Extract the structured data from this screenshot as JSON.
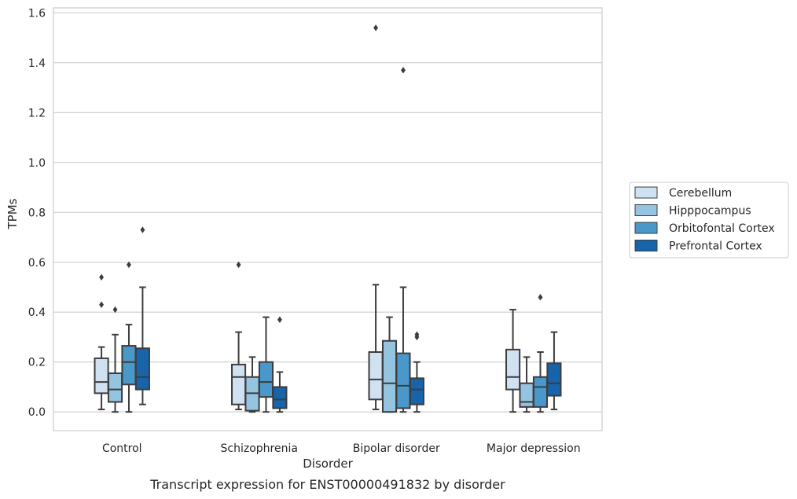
{
  "chart_data": {
    "type": "box",
    "title": "",
    "xlabel": "Disorder",
    "ylabel": "TPMs",
    "caption": "Transcript expression for ENST00000491832 by disorder",
    "ylim": [
      -0.075,
      1.62
    ],
    "yticks": [
      "0.0",
      "0.2",
      "0.4",
      "0.6",
      "0.8",
      "1.0",
      "1.2",
      "1.4",
      "1.6"
    ],
    "ytick_values": [
      0.0,
      0.2,
      0.4,
      0.6,
      0.8,
      1.0,
      1.2,
      1.4,
      1.6
    ],
    "categories": [
      "Control",
      "Schizophrenia",
      "Bipolar disorder",
      "Major depression"
    ],
    "grid": "horizontal",
    "legend_position": "right",
    "series": [
      {
        "name": "Cerebellum",
        "color": "#d0e1f2",
        "boxes": [
          {
            "whislo": 0.01,
            "q1": 0.075,
            "med": 0.12,
            "q3": 0.215,
            "whishi": 0.26,
            "fliers": [
              0.54,
              0.43
            ]
          },
          {
            "whislo": 0.01,
            "q1": 0.03,
            "med": 0.14,
            "q3": 0.19,
            "whishi": 0.32,
            "fliers": [
              0.59
            ]
          },
          {
            "whislo": 0.01,
            "q1": 0.05,
            "med": 0.13,
            "q3": 0.24,
            "whishi": 0.51,
            "fliers": [
              1.54
            ]
          },
          {
            "whislo": 0.0,
            "q1": 0.09,
            "med": 0.14,
            "q3": 0.25,
            "whishi": 0.41,
            "fliers": []
          }
        ]
      },
      {
        "name": "Hipppocampus",
        "color": "#94c4df",
        "boxes": [
          {
            "whislo": 0.0,
            "q1": 0.04,
            "med": 0.09,
            "q3": 0.155,
            "whishi": 0.31,
            "fliers": [
              0.41
            ]
          },
          {
            "whislo": 0.0,
            "q1": 0.005,
            "med": 0.075,
            "q3": 0.14,
            "whishi": 0.22,
            "fliers": []
          },
          {
            "whislo": 0.0,
            "q1": 0.0,
            "med": 0.115,
            "q3": 0.285,
            "whishi": 0.38,
            "fliers": []
          },
          {
            "whislo": 0.0,
            "q1": 0.02,
            "med": 0.04,
            "q3": 0.115,
            "whishi": 0.22,
            "fliers": []
          }
        ]
      },
      {
        "name": "Orbitofontal Cortex",
        "color": "#4a98c9",
        "boxes": [
          {
            "whislo": 0.0,
            "q1": 0.11,
            "med": 0.2,
            "q3": 0.265,
            "whishi": 0.35,
            "fliers": [
              0.59
            ]
          },
          {
            "whislo": 0.0,
            "q1": 0.06,
            "med": 0.12,
            "q3": 0.2,
            "whishi": 0.38,
            "fliers": []
          },
          {
            "whislo": 0.0,
            "q1": 0.015,
            "med": 0.105,
            "q3": 0.235,
            "whishi": 0.5,
            "fliers": [
              1.37
            ]
          },
          {
            "whislo": 0.0,
            "q1": 0.02,
            "med": 0.1,
            "q3": 0.14,
            "whishi": 0.24,
            "fliers": [
              0.46
            ]
          }
        ]
      },
      {
        "name": "Prefrontal Cortex",
        "color": "#1764ab",
        "boxes": [
          {
            "whislo": 0.03,
            "q1": 0.09,
            "med": 0.14,
            "q3": 0.255,
            "whishi": 0.5,
            "fliers": [
              0.73
            ]
          },
          {
            "whislo": 0.0,
            "q1": 0.015,
            "med": 0.05,
            "q3": 0.1,
            "whishi": 0.16,
            "fliers": [
              0.37
            ]
          },
          {
            "whislo": 0.0,
            "q1": 0.03,
            "med": 0.09,
            "q3": 0.135,
            "whishi": 0.2,
            "fliers": [
              0.31,
              0.3
            ]
          },
          {
            "whislo": 0.01,
            "q1": 0.065,
            "med": 0.115,
            "q3": 0.195,
            "whishi": 0.32,
            "fliers": []
          }
        ]
      }
    ]
  }
}
